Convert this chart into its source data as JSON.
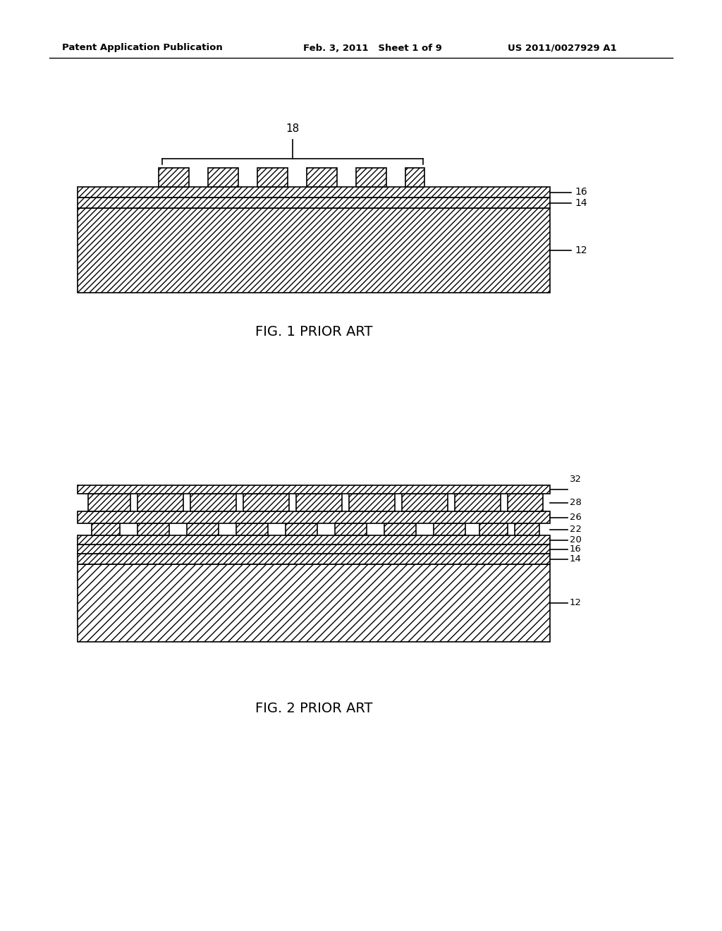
{
  "bg_color": "#ffffff",
  "header_left": "Patent Application Publication",
  "header_mid": "Feb. 3, 2011   Sheet 1 of 9",
  "header_right": "US 2011/0027929 A1",
  "fig1_label": "FIG. 1 PRIOR ART",
  "fig2_label": "FIG. 2 PRIOR ART",
  "line_color": "#000000",
  "hatch_color": "#000000"
}
